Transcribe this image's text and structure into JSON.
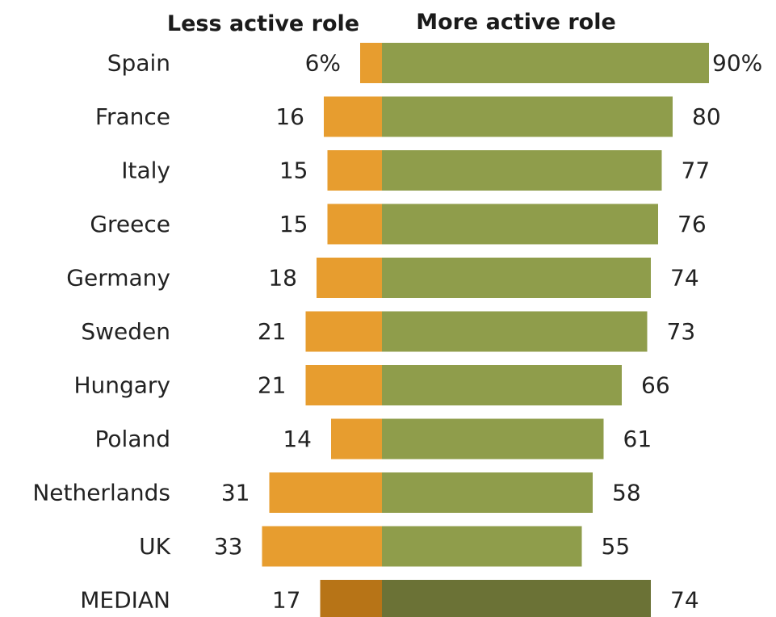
{
  "chart_data": {
    "type": "bar",
    "orientation": "horizontal-diverging",
    "headers": {
      "left": "Less active role",
      "right": "More active role"
    },
    "categories": [
      "Spain",
      "France",
      "Italy",
      "Greece",
      "Germany",
      "Sweden",
      "Hungary",
      "Poland",
      "Netherlands",
      "UK",
      "MEDIAN"
    ],
    "series": [
      {
        "name": "Less active role",
        "values": [
          6,
          16,
          15,
          15,
          18,
          21,
          21,
          14,
          31,
          33,
          17
        ],
        "labels": [
          "6%",
          "16",
          "15",
          "15",
          "18",
          "21",
          "21",
          "14",
          "31",
          "33",
          "17"
        ],
        "color": "#e79d2f",
        "median_color": "#b77417"
      },
      {
        "name": "More active role",
        "values": [
          90,
          80,
          77,
          76,
          74,
          73,
          66,
          61,
          58,
          55,
          74
        ],
        "labels": [
          "90%",
          "80",
          "77",
          "76",
          "74",
          "73",
          "66",
          "61",
          "58",
          "55",
          "74"
        ],
        "color": "#8f9d4b",
        "median_color": "#6b7236"
      }
    ]
  }
}
